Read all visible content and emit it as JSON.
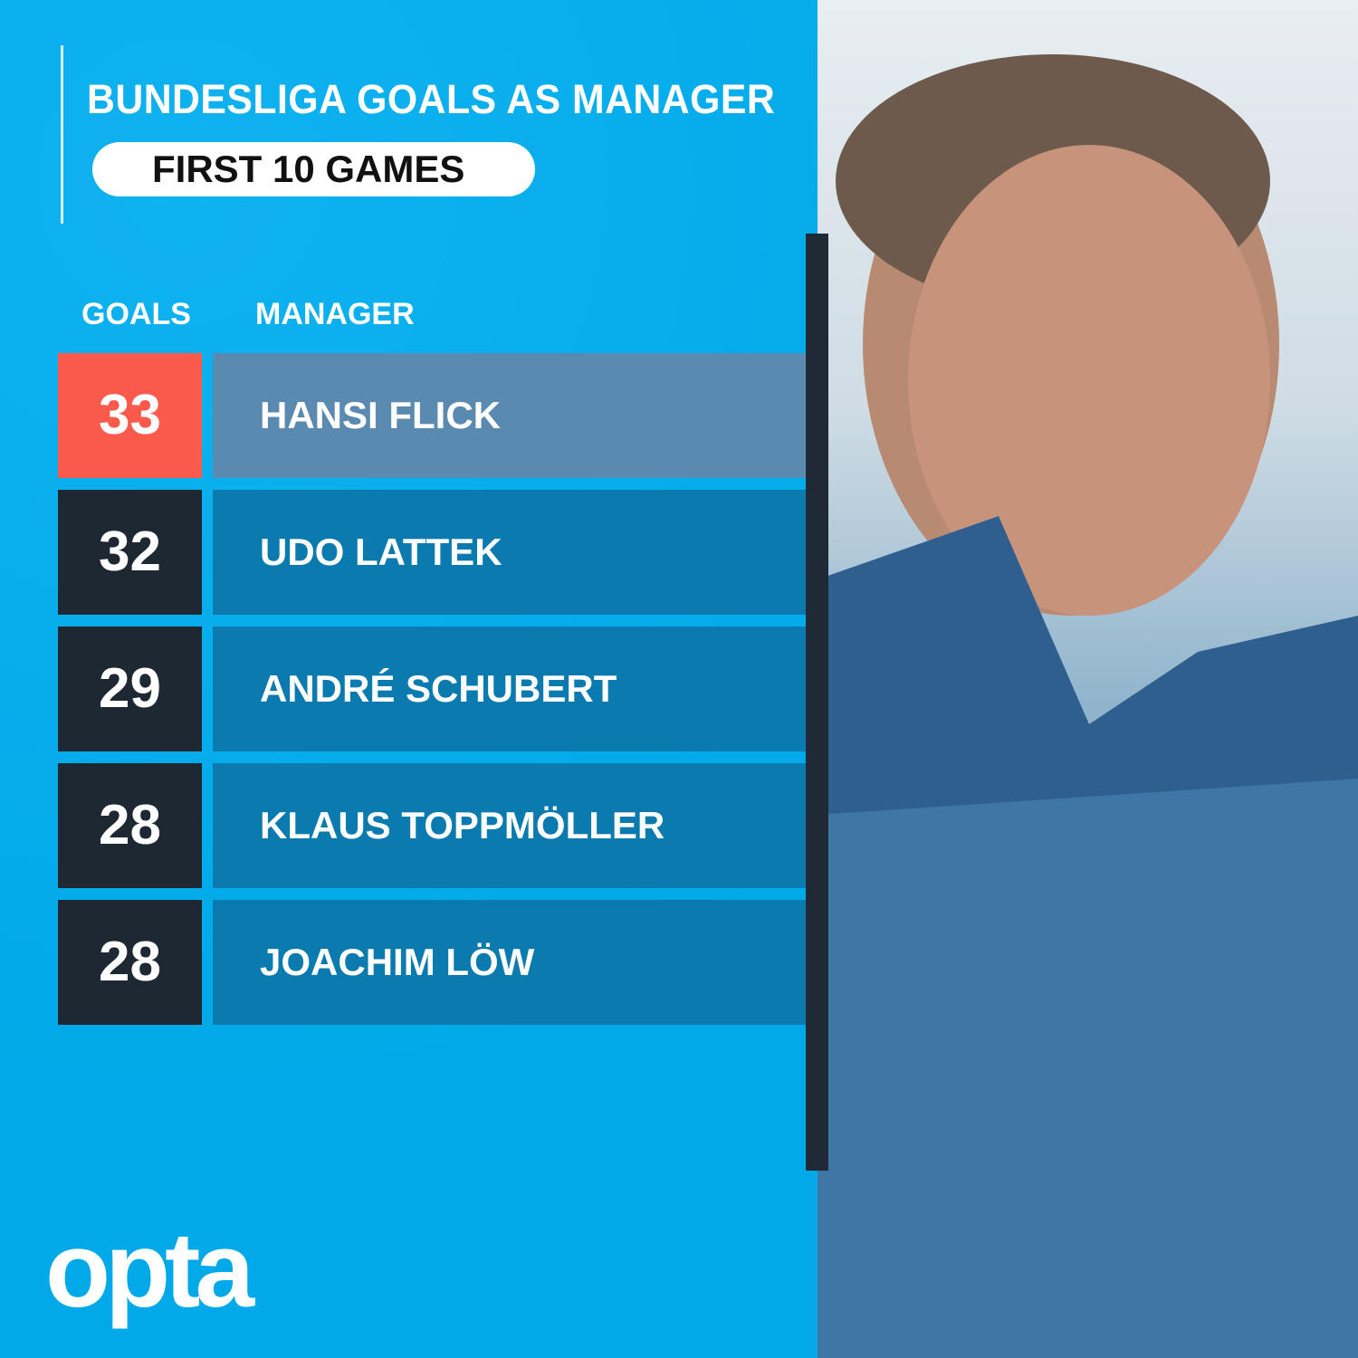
{
  "header": {
    "title": "BUNDESLIGA GOALS AS MANAGER",
    "subtitle": "FIRST 10 GAMES"
  },
  "chart_data": {
    "type": "table",
    "title": "BUNDESLIGA GOALS AS MANAGER",
    "subtitle": "FIRST 10 GAMES",
    "columns": [
      "GOALS",
      "MANAGER"
    ],
    "rows": [
      {
        "goals": "33",
        "manager": "HANSI FLICK",
        "highlight": true
      },
      {
        "goals": "32",
        "manager": "UDO LATTEK"
      },
      {
        "goals": "29",
        "manager": "ANDRÉ SCHUBERT"
      },
      {
        "goals": "28",
        "manager": "KLAUS TOPPMÖLLER"
      },
      {
        "goals": "28",
        "manager": "JOACHIM LÖW"
      }
    ]
  },
  "colors": {
    "background": "#00aeef",
    "highlight_goals": "#fa5a4b",
    "highlight_name": "#5b8ab0",
    "goals": "#1e2833",
    "name": "#0b7aae"
  },
  "brand": {
    "logo": "opta"
  }
}
